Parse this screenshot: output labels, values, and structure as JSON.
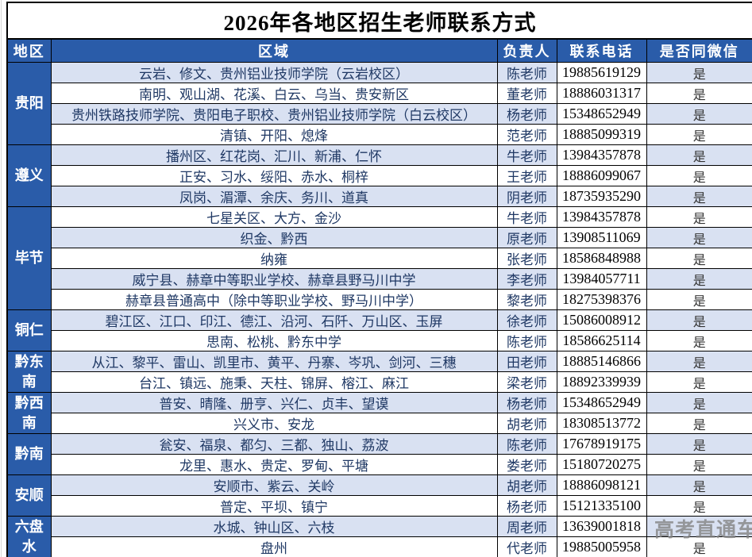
{
  "title": "2026年各地区招生老师联系方式",
  "header": {
    "region": "地区",
    "area": "区域",
    "contact": "负责人",
    "phone": "联系电话",
    "wechat": "是否同微信"
  },
  "watermark": "高考直通车",
  "colors": {
    "header_blue": "#2A5CA9",
    "row_alt_blue": "#D9E1F2",
    "text_navy": "#1F3864",
    "watermark_gray": "#808080"
  },
  "regions": [
    {
      "name": "贵阳",
      "rows": [
        {
          "area": "云岩、修文、贵州铝业技师学院（云岩校区）",
          "contact": "陈老师",
          "phone": "19885619129",
          "wechat": "是"
        },
        {
          "area": "南明、观山湖、花溪、白云、乌当、贵安新区",
          "contact": "董老师",
          "phone": "18886031317",
          "wechat": "是"
        },
        {
          "area": "贵州铁路技师学院、贵阳电子职校、贵州铝业技师学院（白云校区）",
          "contact": "杨老师",
          "phone": "15348652949",
          "wechat": "是"
        },
        {
          "area": "清镇、开阳、熄烽",
          "contact": "范老师",
          "phone": "18885099319",
          "wechat": "是"
        }
      ]
    },
    {
      "name": "遵义",
      "rows": [
        {
          "area": "播州区、红花岗、汇川、新浦、仁怀",
          "contact": "牛老师",
          "phone": "13984357878",
          "wechat": "是"
        },
        {
          "area": "正安、习水、绥阳、赤水、桐梓",
          "contact": "王老师",
          "phone": "18886099067",
          "wechat": "是"
        },
        {
          "area": "凤岗、湄潭、余庆、务川、道真",
          "contact": "阴老师",
          "phone": "18735935290",
          "wechat": "是"
        }
      ]
    },
    {
      "name": "毕节",
      "rows": [
        {
          "area": "七星关区、大方、金沙",
          "contact": "牛老师",
          "phone": "13984357878",
          "wechat": "是"
        },
        {
          "area": "织金、黔西",
          "contact": "原老师",
          "phone": "13908511069",
          "wechat": "是"
        },
        {
          "area": "纳雍",
          "contact": "张老师",
          "phone": "18586848988",
          "wechat": "是"
        },
        {
          "area": "威宁县、赫章中等职业学校、赫章县野马川中学",
          "contact": "李老师",
          "phone": "13984057711",
          "wechat": "是"
        },
        {
          "area": "赫章县普通高中（除中等职业学校、野马川中学）",
          "contact": "黎老师",
          "phone": "18275398376",
          "wechat": "是"
        }
      ]
    },
    {
      "name": "铜仁",
      "rows": [
        {
          "area": "碧江区、江口、印江、德江、沿河、石阡、万山区、玉屏",
          "contact": "徐老师",
          "phone": "15086008912",
          "wechat": "是"
        },
        {
          "area": "思南、松桃、黔东中学",
          "contact": "陈老师",
          "phone": "18586625114",
          "wechat": "是"
        }
      ]
    },
    {
      "name": "黔东南",
      "rows": [
        {
          "area": "从江、黎平、雷山、凯里市、黄平、丹寨、岑巩、剑河、三穗",
          "contact": "田老师",
          "phone": "18885146866",
          "wechat": "是"
        },
        {
          "area": "台江、镇远、施秉、天柱、锦屏、榕江、麻江",
          "contact": "梁老师",
          "phone": "18892339939",
          "wechat": "是"
        }
      ]
    },
    {
      "name": "黔西南",
      "rows": [
        {
          "area": "普安、晴隆、册亨、兴仁、贞丰、望谟",
          "contact": "杨老师",
          "phone": "15348652949",
          "wechat": "是"
        },
        {
          "area": "兴义市、安龙",
          "contact": "胡老师",
          "phone": "18308513772",
          "wechat": "是"
        }
      ]
    },
    {
      "name": "黔南",
      "rows": [
        {
          "area": "瓮安、福泉、都匀、三都、独山、荔波",
          "contact": "陈老师",
          "phone": "17678919175",
          "wechat": "是"
        },
        {
          "area": "龙里、惠水、贵定、罗甸、平塘",
          "contact": "娄老师",
          "phone": "15180720275",
          "wechat": "是"
        }
      ]
    },
    {
      "name": "安顺",
      "rows": [
        {
          "area": "安顺市、紫云、关岭",
          "contact": "胡老师",
          "phone": "18886098121",
          "wechat": "是"
        },
        {
          "area": "普定、平坝、镇宁",
          "contact": "杨老师",
          "phone": "15121335100",
          "wechat": "是"
        }
      ]
    },
    {
      "name": "六盘水",
      "rows": [
        {
          "area": "水城、钟山区、六枝",
          "contact": "周老师",
          "phone": "13639001818",
          "wechat": ""
        },
        {
          "area": "盘州",
          "contact": "代老师",
          "phone": "19885005958",
          "wechat": "是"
        }
      ]
    }
  ]
}
